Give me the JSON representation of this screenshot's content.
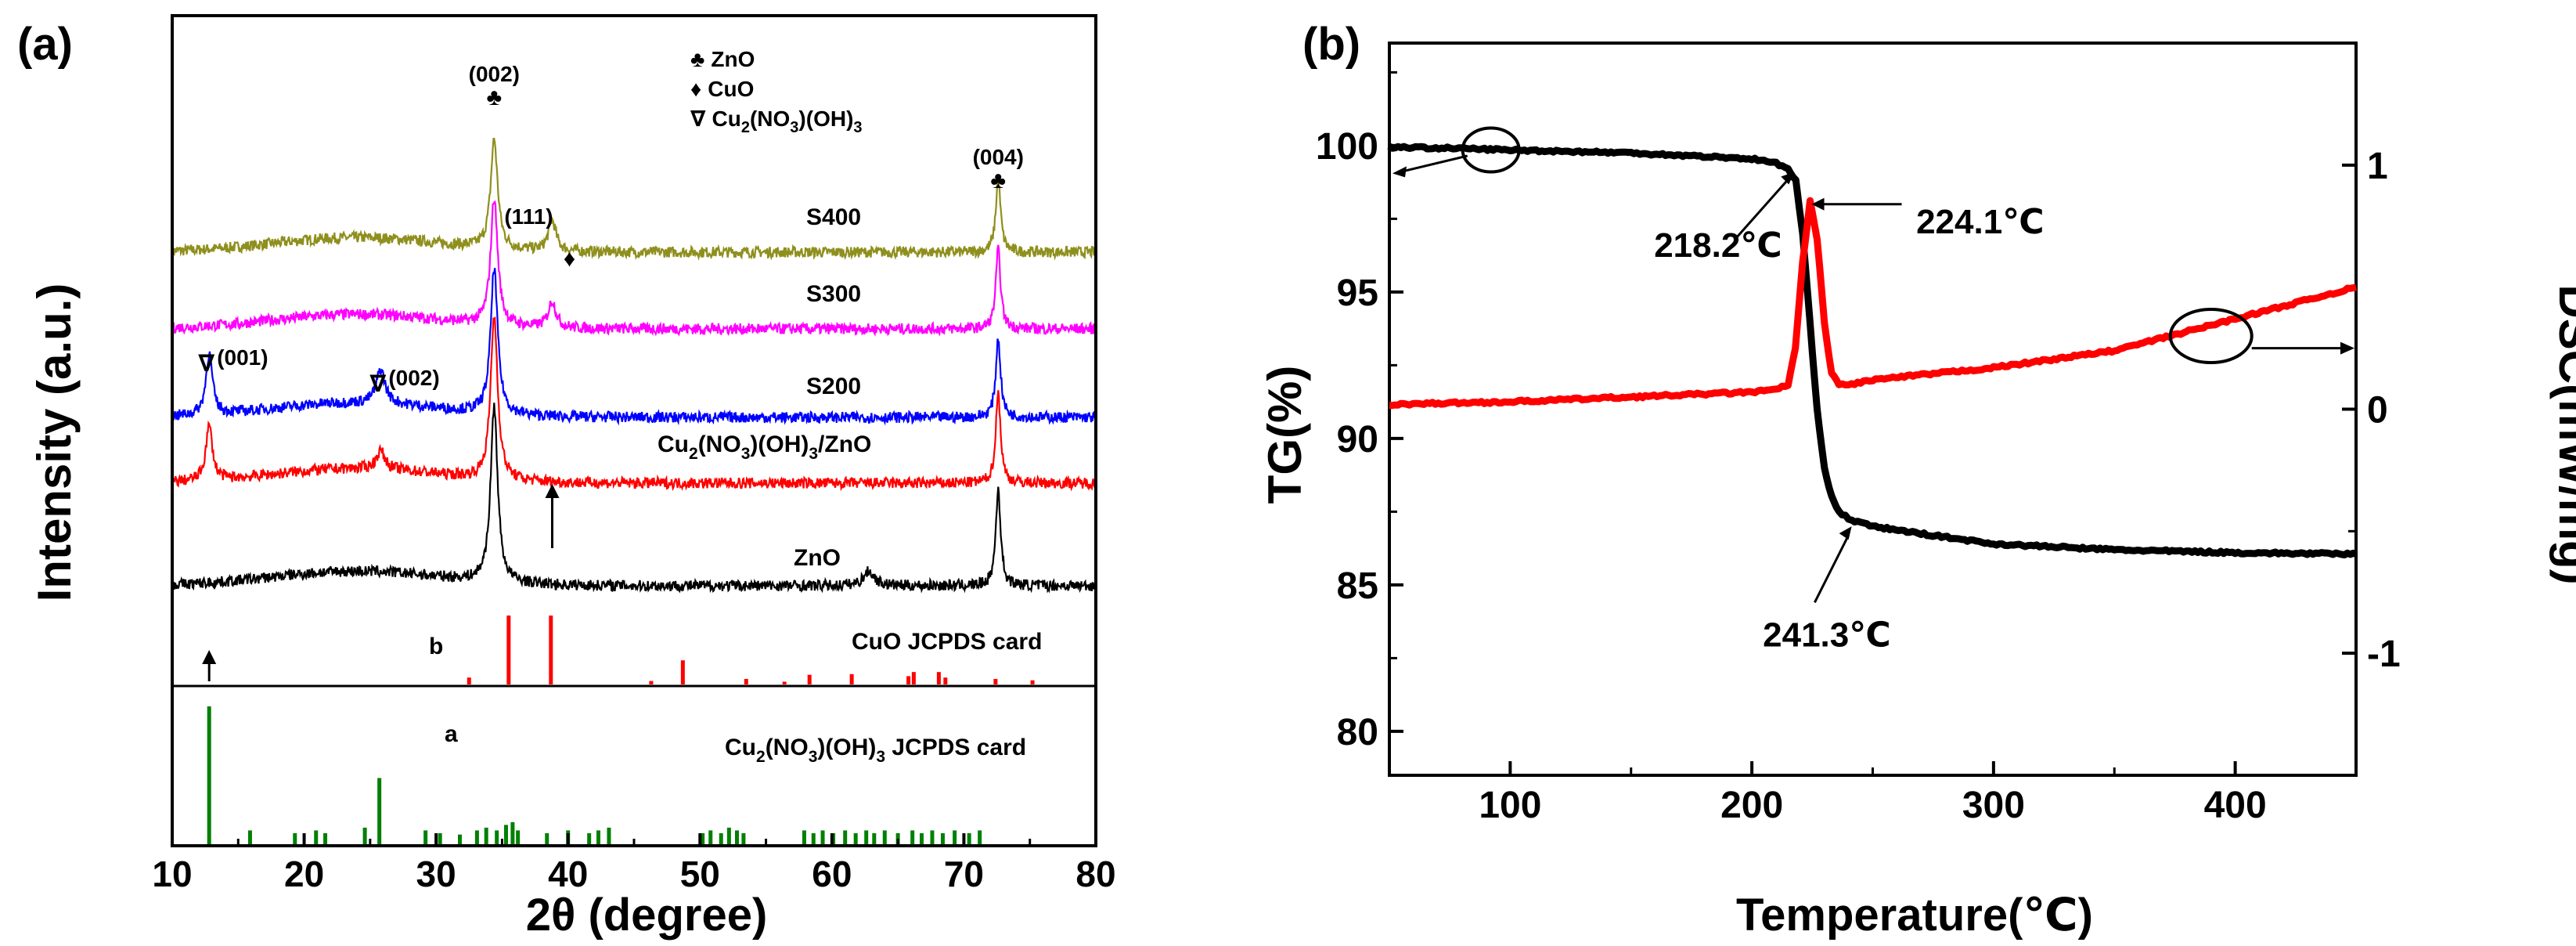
{
  "chart_data": [
    {
      "panel_label": "(a)",
      "type": "line",
      "title": "",
      "xlabel_prefix": "2",
      "xlabel_theta": "θ",
      "xlabel_suffix": " (degree)",
      "ylabel": "Intensity (a.u.)",
      "xlim": [
        10,
        80
      ],
      "xticks": [
        10,
        20,
        30,
        40,
        50,
        60,
        70,
        80
      ],
      "colors": {
        "S400": "#8f8f1e",
        "S300": "#ff00ff",
        "S200": "#0000ff",
        "Cu2(NO3)(OH)3/ZnO": "#ff0000",
        "ZnO": "#000000",
        "CuO card": "#ff0000",
        "Cu2 card": "#008000"
      },
      "legend": {
        "zno_symbol": "♣",
        "zno_label": "ZnO",
        "cuo_symbol": "♦",
        "cuo_label": "CuO",
        "cu2_symbol": "∇",
        "cu2_label_parts": [
          "Cu",
          "2",
          "(NO",
          "3",
          ")(OH)",
          "3"
        ]
      },
      "series": [
        {
          "name": "S400",
          "label": "S400",
          "baseline": 1.0,
          "peaks": [
            [
              34.4,
              0.9,
              0.32
            ],
            [
              38.8,
              0.25,
              0.35
            ],
            [
              72.6,
              0.6,
              0.22
            ]
          ]
        },
        {
          "name": "S300",
          "label": "S300",
          "baseline": 1.0,
          "peaks": [
            [
              34.4,
              1.05,
              0.32
            ],
            [
              38.8,
              0.22,
              0.35
            ],
            [
              72.6,
              0.65,
              0.22
            ]
          ]
        },
        {
          "name": "S200",
          "label": "S200",
          "baseline": 1.0,
          "peaks": [
            [
              12.8,
              0.5,
              0.3
            ],
            [
              25.8,
              0.28,
              0.4
            ],
            [
              34.4,
              1.2,
              0.32
            ],
            [
              72.6,
              0.65,
              0.22
            ]
          ]
        },
        {
          "name": "Cu2(NO3)(OH)3/ZnO",
          "label_parts": [
            "Cu",
            "2",
            "(NO",
            "3",
            ")(OH)",
            "3",
            "/ZnO"
          ],
          "baseline": 1.0,
          "peaks": [
            [
              12.8,
              0.45,
              0.3
            ],
            [
              25.8,
              0.15,
              0.4
            ],
            [
              34.4,
              1.35,
              0.32
            ],
            [
              72.6,
              0.75,
              0.22
            ]
          ]
        },
        {
          "name": "ZnO",
          "label": "ZnO",
          "baseline": 1.0,
          "peaks": [
            [
              34.4,
              1.45,
              0.32
            ],
            [
              62.8,
              0.12,
              0.5
            ],
            [
              72.6,
              0.8,
              0.22
            ]
          ]
        }
      ],
      "peak_annotations": [
        {
          "label": "(002)",
          "symbol": "♣",
          "x": 34.4,
          "series": "S400"
        },
        {
          "label": "(111)",
          "symbol": "♦",
          "x": 38.8,
          "series": "S400"
        },
        {
          "label": "(004)",
          "symbol": "♣",
          "x": 72.6,
          "series": "S400"
        },
        {
          "label": "(001)",
          "symbol": "∇",
          "x": 12.8,
          "series": "S200"
        },
        {
          "label": "(002)",
          "symbol": "∇",
          "x": 25.8,
          "series": "S200"
        }
      ],
      "arrows_x": [
        12.8,
        38.8
      ],
      "reference_cards": [
        {
          "name": "CuO",
          "letter": "b",
          "label": "CuO  JCPDS card",
          "sticks": [
            [
              32.5,
              0.1
            ],
            [
              35.5,
              1.0
            ],
            [
              38.7,
              1.0
            ],
            [
              46.3,
              0.05
            ],
            [
              48.7,
              0.35
            ],
            [
              53.5,
              0.08
            ],
            [
              56.4,
              0.04
            ],
            [
              58.3,
              0.14
            ],
            [
              61.5,
              0.15
            ],
            [
              65.8,
              0.12
            ],
            [
              66.2,
              0.18
            ],
            [
              68.1,
              0.18
            ],
            [
              68.6,
              0.1
            ],
            [
              72.4,
              0.08
            ],
            [
              75.2,
              0.06
            ]
          ]
        },
        {
          "name": "Cu2(NO3)(OH)3",
          "letter": "a",
          "label_parts": [
            "Cu",
            "2",
            "(NO",
            "3",
            ")(OH)",
            "3"
          ],
          "label_suffix": "  JCPDS card",
          "sticks": [
            [
              12.8,
              1.0
            ],
            [
              15.9,
              0.1
            ],
            [
              19.3,
              0.08
            ],
            [
              20.9,
              0.1
            ],
            [
              21.6,
              0.08
            ],
            [
              24.6,
              0.12
            ],
            [
              25.7,
              0.48
            ],
            [
              29.2,
              0.1
            ],
            [
              30.3,
              0.08
            ],
            [
              31.8,
              0.07
            ],
            [
              33.1,
              0.1
            ],
            [
              33.8,
              0.12
            ],
            [
              34.6,
              0.1
            ],
            [
              35.3,
              0.14
            ],
            [
              35.8,
              0.16
            ],
            [
              36.2,
              0.1
            ],
            [
              38.4,
              0.08
            ],
            [
              40.0,
              0.1
            ],
            [
              41.6,
              0.08
            ],
            [
              42.3,
              0.1
            ],
            [
              43.1,
              0.12
            ],
            [
              50.2,
              0.08
            ],
            [
              50.8,
              0.1
            ],
            [
              51.6,
              0.08
            ],
            [
              52.2,
              0.12
            ],
            [
              52.8,
              0.1
            ],
            [
              53.3,
              0.08
            ],
            [
              57.9,
              0.1
            ],
            [
              58.6,
              0.08
            ],
            [
              59.3,
              0.1
            ],
            [
              60.1,
              0.08
            ],
            [
              61.0,
              0.1
            ],
            [
              61.8,
              0.08
            ],
            [
              62.6,
              0.1
            ],
            [
              63.2,
              0.08
            ],
            [
              64.0,
              0.1
            ],
            [
              65.0,
              0.08
            ],
            [
              66.1,
              0.1
            ],
            [
              66.8,
              0.08
            ],
            [
              67.6,
              0.1
            ],
            [
              68.4,
              0.08
            ],
            [
              69.3,
              0.1
            ],
            [
              70.4,
              0.08
            ],
            [
              71.2,
              0.1
            ]
          ]
        }
      ]
    },
    {
      "panel_label": "(b)",
      "type": "line",
      "title": "",
      "xlabel": "Temperature(℃)",
      "ylabel_left": "TG(%)",
      "ylabel_right": "DSC(mW/mg)",
      "xlim": [
        50,
        450
      ],
      "ylim_left": [
        78.5,
        103.5
      ],
      "ylim_right": [
        -1.5,
        1.5
      ],
      "xticks": [
        100,
        200,
        300,
        400
      ],
      "yticks_left": [
        80,
        85,
        90,
        95,
        100
      ],
      "yticks_right": [
        -1,
        0,
        1
      ],
      "colors": {
        "TG": "#000000",
        "DSC": "#ff0000"
      },
      "series": [
        {
          "name": "TG",
          "axis": "left",
          "x": [
            50,
            80,
            100,
            150,
            200,
            210,
            215,
            218.2,
            221,
            224,
            227,
            230,
            233,
            236,
            241.3,
            250,
            270,
            300,
            350,
            400,
            450
          ],
          "y": [
            99.95,
            99.9,
            99.85,
            99.75,
            99.55,
            99.4,
            99.2,
            98.8,
            97.0,
            94.0,
            91.0,
            89.0,
            88.0,
            87.5,
            87.2,
            87.0,
            86.75,
            86.4,
            86.2,
            86.1,
            86.05
          ]
        },
        {
          "name": "DSC",
          "axis": "right",
          "x": [
            50,
            100,
            150,
            200,
            210,
            215,
            218,
            221,
            224.1,
            227,
            230,
            233,
            236,
            240,
            250,
            300,
            350,
            400,
            450
          ],
          "y": [
            0.02,
            0.03,
            0.05,
            0.07,
            0.08,
            0.1,
            0.25,
            0.6,
            0.85,
            0.7,
            0.35,
            0.15,
            0.1,
            0.1,
            0.12,
            0.17,
            0.24,
            0.37,
            0.5
          ]
        }
      ],
      "annotations": [
        {
          "label": "218.2℃",
          "x": 218.2,
          "curve": "TG"
        },
        {
          "label": "224.1℃",
          "x": 224.1,
          "curve": "DSC"
        },
        {
          "label": "241.3℃",
          "x": 241.3,
          "curve": "TG"
        }
      ]
    }
  ]
}
